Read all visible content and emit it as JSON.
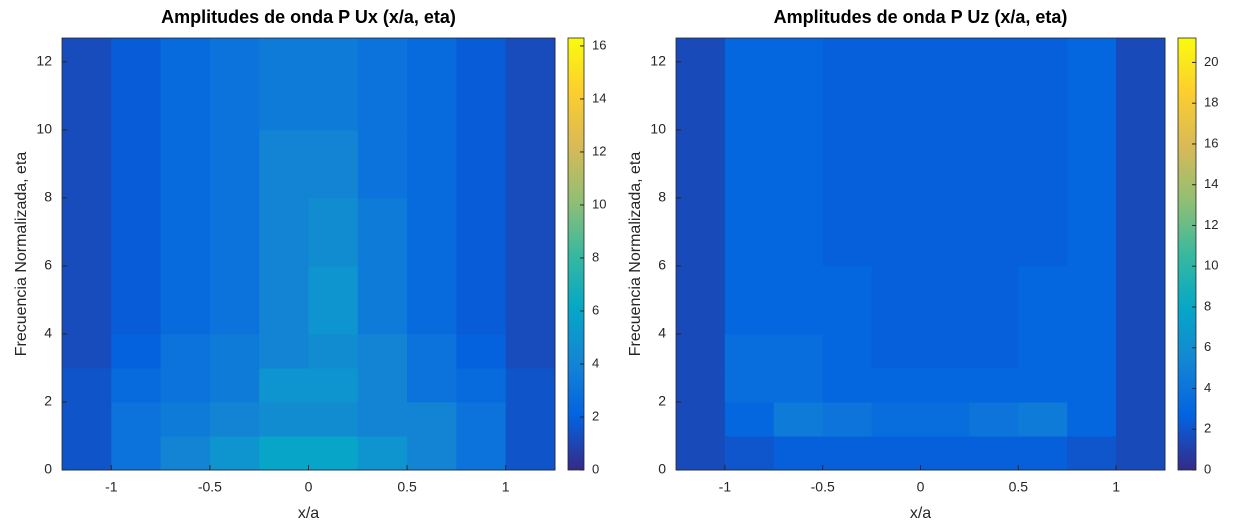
{
  "chart_data": [
    {
      "type": "heatmap",
      "title": "Amplitudes de onda P Ux (x/a, eta)",
      "xlabel": "x/a",
      "ylabel": "Frecuencia Normalizada, eta",
      "xlim": [
        -1.25,
        1.25
      ],
      "ylim": [
        0,
        12.7
      ],
      "xticks": [
        -1,
        -0.5,
        0,
        0.5,
        1
      ],
      "yticks": [
        0,
        2,
        4,
        6,
        8,
        10,
        12
      ],
      "xbins": [
        -1.25,
        -1,
        -0.75,
        -0.5,
        -0.25,
        0,
        0.25,
        0.5,
        0.75,
        1,
        1.25
      ],
      "ybins": [
        0,
        1,
        2,
        3,
        4,
        6,
        8,
        10,
        12.7
      ],
      "z": [
        [
          1.5,
          3,
          4,
          5,
          6,
          6,
          5,
          4,
          3,
          1.5
        ],
        [
          1.5,
          3,
          3.5,
          4,
          4.5,
          4.5,
          4,
          4,
          3,
          1.5
        ],
        [
          1.5,
          2.5,
          3,
          3.5,
          5,
          5,
          4,
          3,
          2.5,
          1.5
        ],
        [
          1.2,
          2,
          3,
          3.5,
          4,
          4.5,
          4,
          3,
          2,
          1.2
        ],
        [
          1.2,
          1.8,
          2.5,
          3,
          4,
          5,
          3.5,
          2.5,
          1.8,
          1.2
        ],
        [
          1.2,
          1.8,
          2.5,
          3,
          4,
          4.5,
          3.5,
          2.5,
          1.8,
          1.2
        ],
        [
          1.2,
          1.8,
          2.5,
          3,
          4,
          4,
          3,
          2.5,
          1.8,
          1.2
        ],
        [
          1.2,
          1.8,
          2.5,
          3,
          3.5,
          3.5,
          3,
          2.5,
          1.8,
          1.2
        ]
      ],
      "clim": [
        0,
        16.3
      ],
      "cticks": [
        0,
        2,
        4,
        6,
        8,
        10,
        12,
        14,
        16
      ],
      "colormap": [
        "#352a87",
        "#0363e1",
        "#1485d4",
        "#06a7c6",
        "#38b99e",
        "#92bf73",
        "#d9ba56",
        "#fcce2e",
        "#f9fb0e"
      ],
      "grid": false
    },
    {
      "type": "heatmap",
      "title": "Amplitudes de onda P Uz (x/a, eta)",
      "xlabel": "x/a",
      "ylabel": "Frecuencia Normalizada, eta",
      "xlim": [
        -1.25,
        1.25
      ],
      "ylim": [
        0,
        12.7
      ],
      "xticks": [
        -1,
        -0.5,
        0,
        0.5,
        1
      ],
      "yticks": [
        0,
        2,
        4,
        6,
        8,
        10,
        12
      ],
      "xbins": [
        -1.25,
        -1,
        -0.75,
        -0.5,
        -0.25,
        0,
        0.25,
        0.5,
        0.75,
        1,
        1.25
      ],
      "ybins": [
        0,
        1,
        2,
        3,
        4,
        6,
        8,
        10,
        12.7
      ],
      "z": [
        [
          1.5,
          2,
          2.5,
          2.5,
          2.5,
          2.5,
          2.5,
          2.5,
          2,
          1.5
        ],
        [
          1.5,
          3,
          4.5,
          4,
          3.5,
          3.5,
          4,
          4.5,
          3,
          1.5
        ],
        [
          1.5,
          3.5,
          3.5,
          3,
          3,
          3,
          3,
          3,
          3,
          1.5
        ],
        [
          1.5,
          3.5,
          3.5,
          3,
          2.5,
          2.5,
          2.5,
          3,
          3,
          1.5
        ],
        [
          1.5,
          3,
          3,
          3,
          2.5,
          2.5,
          2.5,
          3,
          3,
          1.5
        ],
        [
          1.5,
          3,
          3,
          2.5,
          2.5,
          2.5,
          2.5,
          2.5,
          3,
          1.5
        ],
        [
          1.5,
          3,
          3,
          2.5,
          2.5,
          2.5,
          2.5,
          2.5,
          3,
          1.5
        ],
        [
          1.5,
          3,
          3,
          2.5,
          2.5,
          2.5,
          2.5,
          2.5,
          3,
          1.5
        ]
      ],
      "clim": [
        0,
        21.2
      ],
      "cticks": [
        0,
        2,
        4,
        6,
        8,
        10,
        12,
        14,
        16,
        18,
        20
      ],
      "colormap": [
        "#352a87",
        "#0363e1",
        "#1485d4",
        "#06a7c6",
        "#38b99e",
        "#92bf73",
        "#d9ba56",
        "#fcce2e",
        "#f9fb0e"
      ],
      "grid": false
    }
  ]
}
